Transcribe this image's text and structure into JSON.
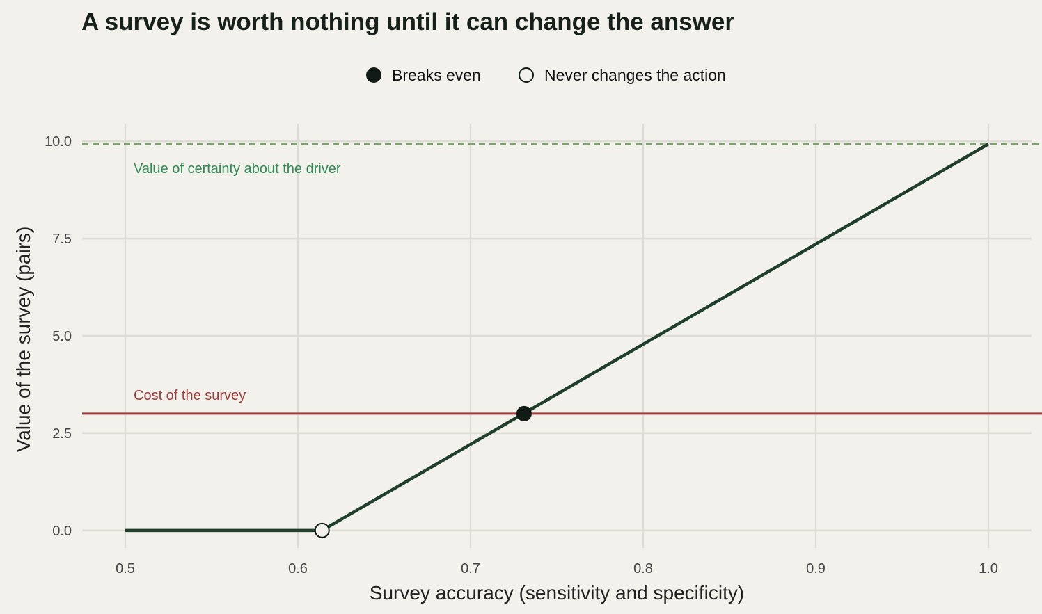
{
  "colors": {
    "background": "#f2f1eb",
    "grid": "#deddd5",
    "line": "#1f3f2c",
    "point": "#111a14",
    "cost": "#a03a3a",
    "certainty": "#2e8b57",
    "certainty_line": "#7fa06f"
  },
  "chart_data": {
    "type": "line",
    "title": "A survey is worth nothing until it can change the answer",
    "xlabel": "Survey accuracy (sensitivity and specificity)",
    "ylabel": "Value of the survey (pairs)",
    "xlim": [
      0.475,
      1.025
    ],
    "ylim": [
      -0.45,
      10.45
    ],
    "xticks": [
      0.5,
      0.6,
      0.7,
      0.8,
      0.9,
      1.0
    ],
    "xtick_labels": [
      "0.5",
      "0.6",
      "0.7",
      "0.8",
      "0.9",
      "1.0"
    ],
    "yticks": [
      0.0,
      2.5,
      5.0,
      7.5,
      10.0
    ],
    "ytick_labels": [
      "0.0",
      "2.5",
      "5.0",
      "7.5",
      "10.0"
    ],
    "grid": true,
    "legend_position": "top-center",
    "series": [
      {
        "x": [
          0.5,
          0.614,
          1.0
        ],
        "y": [
          0.0,
          0.0,
          9.93
        ]
      }
    ],
    "points": [
      {
        "name": "Breaks even",
        "x": 0.731,
        "y": 3.0,
        "style": "filled"
      },
      {
        "name": "Never changes the action",
        "x": 0.614,
        "y": 0.0,
        "style": "open"
      }
    ],
    "hlines": [
      {
        "y": 3.0,
        "label": "Cost of the survey",
        "style": "solid",
        "color_key": "cost"
      },
      {
        "y": 9.93,
        "label": "Value of certainty about the driver",
        "style": "dashed",
        "color_key": "certainty"
      }
    ]
  }
}
